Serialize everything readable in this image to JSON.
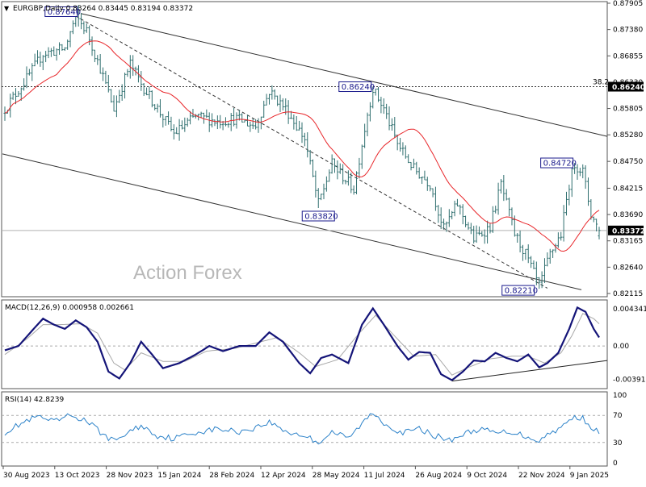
{
  "chart_data": [
    {
      "type": "line",
      "panel": "price",
      "symbol": "EURGBP",
      "timeframe": "Daily",
      "title_text": "EURGBP,Daily  0.83264 0.83445 0.83194 0.83372",
      "watermark": "Action Forex",
      "ohlc": {
        "open": 0.83264,
        "high": 0.83445,
        "low": 0.83194,
        "close": 0.83372
      },
      "x_labels": [
        "30 Aug 2023",
        "13 Oct 2023",
        "28 Nov 2023",
        "15 Jan 2024",
        "28 Feb 2024",
        "12 Apr 2024",
        "28 May 2024",
        "11 Jul 2024",
        "26 Aug 2024",
        "9 Oct 2024",
        "22 Nov 2024",
        "9 Jan 2025"
      ],
      "y_ticks": [
        "0.87905",
        "0.87380",
        "0.86855",
        "0.86330",
        "0.85805",
        "0.85280",
        "0.84750",
        "0.84215",
        "0.83690",
        "0.83165",
        "0.82640",
        "0.82115"
      ],
      "ylim": [
        0.82115,
        0.87905
      ],
      "current_price": "0.83372",
      "fib_level": {
        "label": "38.2",
        "value": "0.86240"
      },
      "annotations": [
        {
          "text": "0.87640",
          "date_index": 26,
          "value": 0.8764
        },
        {
          "text": "0.86240",
          "date_index": 135,
          "value": 0.8624
        },
        {
          "text": "0.83820",
          "date_index": 115,
          "value": 0.8382
        },
        {
          "text": "0.82210",
          "date_index": 196,
          "value": 0.8221
        },
        {
          "text": "0.84720",
          "date_index": 209,
          "value": 0.8472
        }
      ],
      "price_keypoints": [
        [
          0,
          0.858
        ],
        [
          8,
          0.864
        ],
        [
          14,
          0.869
        ],
        [
          22,
          0.87
        ],
        [
          26,
          0.8764
        ],
        [
          30,
          0.8735
        ],
        [
          35,
          0.866
        ],
        [
          40,
          0.858
        ],
        [
          46,
          0.867
        ],
        [
          50,
          0.863
        ],
        [
          56,
          0.858
        ],
        [
          62,
          0.853
        ],
        [
          70,
          0.8565
        ],
        [
          78,
          0.8555
        ],
        [
          85,
          0.856
        ],
        [
          92,
          0.8545
        ],
        [
          97,
          0.8615
        ],
        [
          103,
          0.858
        ],
        [
          110,
          0.852
        ],
        [
          115,
          0.839
        ],
        [
          120,
          0.847
        ],
        [
          128,
          0.842
        ],
        [
          133,
          0.857
        ],
        [
          135,
          0.862
        ],
        [
          139,
          0.858
        ],
        [
          144,
          0.851
        ],
        [
          150,
          0.846
        ],
        [
          156,
          0.843
        ],
        [
          161,
          0.834
        ],
        [
          166,
          0.839
        ],
        [
          172,
          0.832
        ],
        [
          178,
          0.8345
        ],
        [
          182,
          0.843
        ],
        [
          187,
          0.833
        ],
        [
          191,
          0.829
        ],
        [
          196,
          0.8225
        ],
        [
          200,
          0.829
        ],
        [
          204,
          0.833
        ],
        [
          207,
          0.843
        ],
        [
          209,
          0.847
        ],
        [
          212,
          0.8455
        ],
        [
          215,
          0.837
        ],
        [
          218,
          0.8337
        ]
      ],
      "n_bars": 219,
      "ma_color": "#e8262a",
      "bar_color": "#2f6f6f",
      "channel_color": "#333333"
    },
    {
      "type": "line",
      "panel": "macd",
      "title_text": "MACD(12,26,9) 0.000958 0.002661",
      "series": [
        {
          "name": "MACD",
          "color": "#141478"
        },
        {
          "name": "Signal",
          "color": "#a9a9a9"
        }
      ],
      "values": {
        "macd": 0.000958,
        "signal": 0.002661
      },
      "y_ticks": [
        "0.004341",
        "0.00",
        "-0.003916"
      ],
      "ylim": [
        -0.0048,
        0.0052
      ],
      "macd_keypoints": [
        [
          0,
          -0.0005
        ],
        [
          5,
          0.0
        ],
        [
          10,
          0.0018
        ],
        [
          14,
          0.0032
        ],
        [
          18,
          0.0025
        ],
        [
          22,
          0.002
        ],
        [
          26,
          0.003
        ],
        [
          30,
          0.0022
        ],
        [
          34,
          0.0005
        ],
        [
          38,
          -0.003
        ],
        [
          42,
          -0.0038
        ],
        [
          46,
          -0.002
        ],
        [
          50,
          0.0005
        ],
        [
          54,
          -0.001
        ],
        [
          58,
          -0.0026
        ],
        [
          64,
          -0.002
        ],
        [
          70,
          -0.001
        ],
        [
          75,
          0.0
        ],
        [
          80,
          -0.0006
        ],
        [
          86,
          0.0
        ],
        [
          92,
          0.0
        ],
        [
          97,
          0.0016
        ],
        [
          102,
          0.0005
        ],
        [
          108,
          -0.002
        ],
        [
          112,
          -0.0032
        ],
        [
          116,
          -0.0014
        ],
        [
          120,
          -0.001
        ],
        [
          126,
          -0.002
        ],
        [
          131,
          0.0025
        ],
        [
          135,
          0.0044
        ],
        [
          139,
          0.0025
        ],
        [
          144,
          0.0
        ],
        [
          148,
          -0.0016
        ],
        [
          152,
          -0.0007
        ],
        [
          156,
          -0.0008
        ],
        [
          160,
          -0.0033
        ],
        [
          164,
          -0.004
        ],
        [
          168,
          -0.003
        ],
        [
          172,
          -0.0017
        ],
        [
          176,
          -0.0018
        ],
        [
          180,
          -0.0008
        ],
        [
          184,
          -0.0014
        ],
        [
          188,
          -0.0018
        ],
        [
          192,
          -0.001
        ],
        [
          196,
          -0.0025
        ],
        [
          199,
          -0.002
        ],
        [
          203,
          -0.0008
        ],
        [
          207,
          0.002
        ],
        [
          210,
          0.0045
        ],
        [
          213,
          0.004
        ],
        [
          216,
          0.002
        ],
        [
          218,
          0.001
        ]
      ],
      "signal_keypoints": [
        [
          0,
          -0.001
        ],
        [
          8,
          0.0008
        ],
        [
          14,
          0.0025
        ],
        [
          20,
          0.0025
        ],
        [
          28,
          0.0026
        ],
        [
          34,
          0.0015
        ],
        [
          40,
          -0.002
        ],
        [
          44,
          -0.0028
        ],
        [
          50,
          -0.0008
        ],
        [
          58,
          -0.0018
        ],
        [
          66,
          -0.0018
        ],
        [
          74,
          -0.0006
        ],
        [
          84,
          -0.0003
        ],
        [
          94,
          0.0005
        ],
        [
          100,
          0.001
        ],
        [
          108,
          -0.0008
        ],
        [
          114,
          -0.0024
        ],
        [
          122,
          -0.0016
        ],
        [
          130,
          0.0015
        ],
        [
          136,
          0.0036
        ],
        [
          142,
          0.0015
        ],
        [
          150,
          -0.0012
        ],
        [
          158,
          -0.001
        ],
        [
          164,
          -0.0034
        ],
        [
          170,
          -0.0025
        ],
        [
          178,
          -0.0015
        ],
        [
          186,
          -0.0012
        ],
        [
          192,
          -0.0012
        ],
        [
          198,
          -0.002
        ],
        [
          204,
          -0.0008
        ],
        [
          208,
          0.0012
        ],
        [
          212,
          0.0038
        ],
        [
          216,
          0.0032
        ],
        [
          218,
          0.0026
        ]
      ],
      "trendline_label": ""
    },
    {
      "type": "line",
      "panel": "rsi",
      "title_text": "RSI(14) 42.8239",
      "series": [
        {
          "name": "RSI(14)",
          "color": "#2c82c9"
        }
      ],
      "value": 42.8239,
      "y_ticks": [
        "100",
        "70",
        "30",
        "0"
      ],
      "ylim": [
        0,
        100
      ],
      "rsi_keypoints": [
        [
          0,
          45
        ],
        [
          6,
          58
        ],
        [
          12,
          68
        ],
        [
          18,
          60
        ],
        [
          24,
          70
        ],
        [
          30,
          62
        ],
        [
          36,
          42
        ],
        [
          40,
          32
        ],
        [
          44,
          42
        ],
        [
          50,
          55
        ],
        [
          56,
          40
        ],
        [
          62,
          36
        ],
        [
          70,
          45
        ],
        [
          78,
          50
        ],
        [
          86,
          46
        ],
        [
          92,
          52
        ],
        [
          97,
          60
        ],
        [
          104,
          45
        ],
        [
          110,
          40
        ],
        [
          115,
          30
        ],
        [
          120,
          46
        ],
        [
          126,
          36
        ],
        [
          132,
          62
        ],
        [
          135,
          74
        ],
        [
          140,
          56
        ],
        [
          146,
          44
        ],
        [
          152,
          50
        ],
        [
          158,
          40
        ],
        [
          163,
          33
        ],
        [
          168,
          42
        ],
        [
          174,
          50
        ],
        [
          180,
          44
        ],
        [
          186,
          46
        ],
        [
          192,
          38
        ],
        [
          196,
          33
        ],
        [
          200,
          44
        ],
        [
          205,
          55
        ],
        [
          209,
          68
        ],
        [
          212,
          66
        ],
        [
          215,
          54
        ],
        [
          218,
          43
        ]
      ]
    }
  ]
}
